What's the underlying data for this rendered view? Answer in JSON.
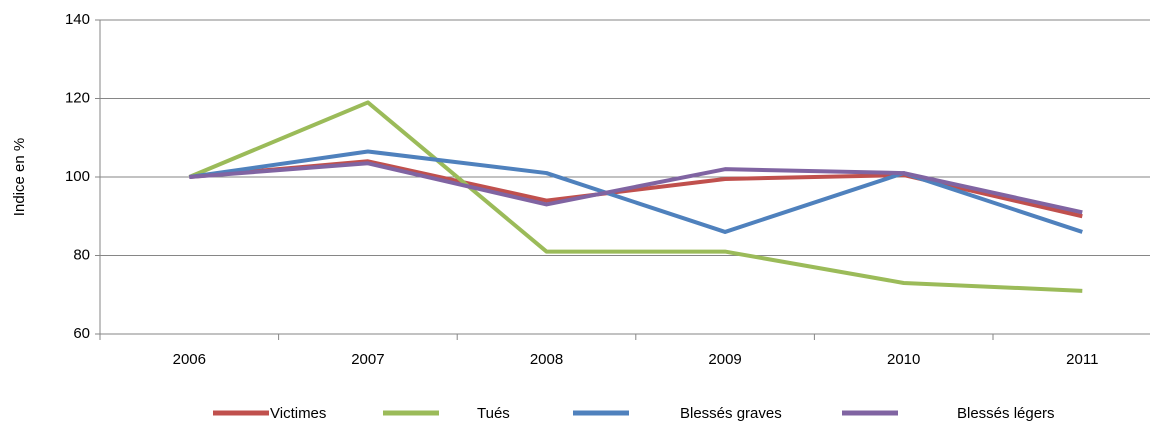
{
  "chart_data": {
    "type": "line",
    "y_label": "Indice en %",
    "categories": [
      "2006",
      "2007",
      "2008",
      "2009",
      "2010",
      "2011"
    ],
    "series": [
      {
        "name": "Victimes",
        "color": "#c0504d",
        "values": [
          100,
          104,
          94,
          99.5,
          100.5,
          90
        ]
      },
      {
        "name": "Tués",
        "color": "#9bbb59",
        "values": [
          100,
          119,
          81,
          81,
          73,
          71
        ]
      },
      {
        "name": "Blessés graves",
        "color": "#4f81bd",
        "values": [
          100,
          106.5,
          101,
          86,
          101,
          86
        ]
      },
      {
        "name": "Blessés légers",
        "color": "#8064a2",
        "values": [
          100,
          103.5,
          93,
          102,
          101,
          91
        ]
      }
    ],
    "ylim": [
      60,
      140
    ],
    "yticks": [
      60,
      80,
      100,
      120,
      140
    ],
    "grid": true,
    "legend": "bottom"
  }
}
